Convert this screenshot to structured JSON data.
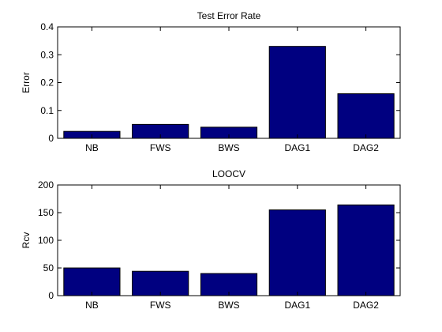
{
  "chart_data": [
    {
      "type": "bar",
      "title": "Test Error Rate",
      "xlabel": "",
      "ylabel": "Error",
      "categories": [
        "NB",
        "FWS",
        "BWS",
        "DAG1",
        "DAG2"
      ],
      "values": [
        0.025,
        0.05,
        0.04,
        0.33,
        0.16
      ],
      "ylim": [
        0,
        0.4
      ],
      "yticks": [
        0,
        0.1,
        0.2,
        0.3,
        0.4
      ],
      "ytick_labels": [
        "0",
        "0.1",
        "0.2",
        "0.3",
        "0.4"
      ],
      "bar_color": "#000080",
      "grid": false
    },
    {
      "type": "bar",
      "title": "LOOCV",
      "xlabel": "",
      "ylabel": "Rcv",
      "categories": [
        "NB",
        "FWS",
        "BWS",
        "DAG1",
        "DAG2"
      ],
      "values": [
        50,
        44,
        40,
        155,
        164
      ],
      "ylim": [
        0,
        200
      ],
      "yticks": [
        0,
        50,
        100,
        150,
        200
      ],
      "ytick_labels": [
        "0",
        "50",
        "100",
        "150",
        "200"
      ],
      "bar_color": "#000080",
      "grid": false
    }
  ]
}
